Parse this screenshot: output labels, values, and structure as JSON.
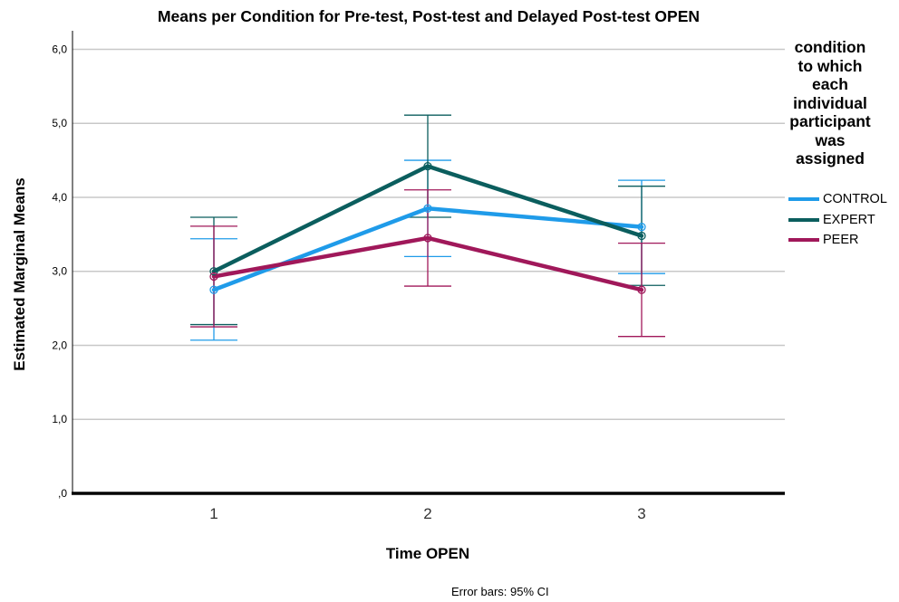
{
  "chart_data": {
    "type": "line",
    "title": "Means per Condition for Pre-test, Post-test and Delayed Post-test OPEN",
    "xlabel": "Time OPEN",
    "ylabel": "Estimated Marginal Means",
    "categories": [
      "1",
      "2",
      "3"
    ],
    "ylim": [
      0,
      6.25
    ],
    "yticks": [
      0,
      1,
      2,
      3,
      4,
      5,
      6
    ],
    "ytick_labels": [
      ",0",
      "1,0",
      "2,0",
      "3,0",
      "4,0",
      "5,0",
      "6,0"
    ],
    "grid": true,
    "legend": {
      "title": "condition to which each individual participant was assigned",
      "position": "right"
    },
    "series": [
      {
        "name": "CONTROL",
        "color": "#1f9be9",
        "values": [
          2.75,
          3.85,
          3.6
        ],
        "ci_low": [
          2.07,
          3.2,
          2.97
        ],
        "ci_high": [
          3.44,
          4.5,
          4.23
        ]
      },
      {
        "name": "EXPERT",
        "color": "#0b5e5e",
        "values": [
          3.0,
          4.42,
          3.48
        ],
        "ci_low": [
          2.28,
          3.73,
          2.81
        ],
        "ci_high": [
          3.73,
          5.11,
          4.15
        ]
      },
      {
        "name": "PEER",
        "color": "#a0185a",
        "values": [
          2.93,
          3.45,
          2.75
        ],
        "ci_low": [
          2.25,
          2.8,
          2.12
        ],
        "ci_high": [
          3.61,
          4.1,
          3.38
        ]
      }
    ],
    "footnote": "Error bars: 95% CI"
  }
}
